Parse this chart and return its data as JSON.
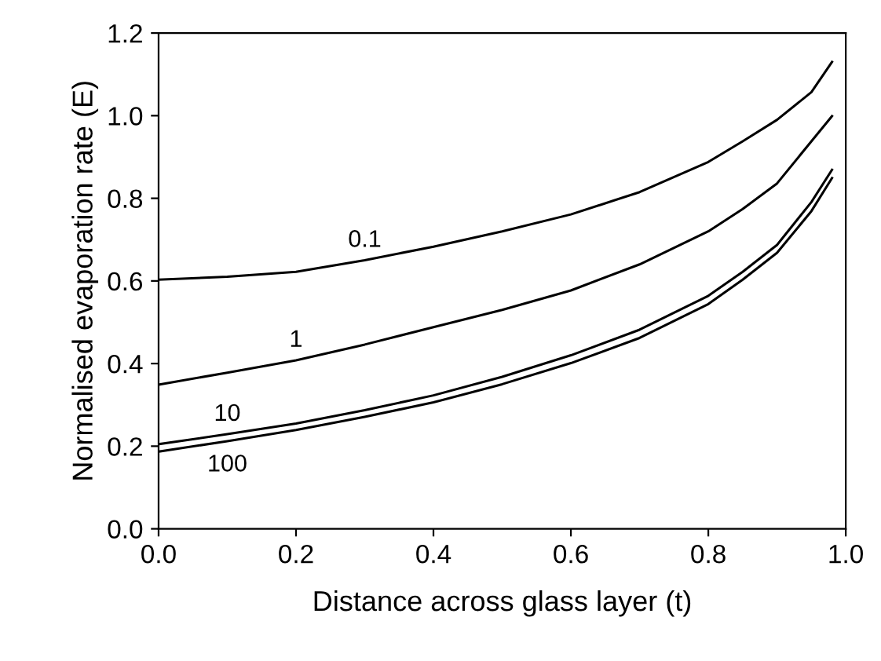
{
  "chart_data": {
    "type": "line",
    "xlabel": "Distance across glass layer (t)",
    "ylabel": "Normalised evaporation rate (E)",
    "x": [
      0,
      0.1,
      0.2,
      0.3,
      0.4,
      0.5,
      0.6,
      0.7,
      0.8,
      0.85,
      0.9,
      0.95,
      0.98
    ],
    "series": [
      {
        "name": "0.1",
        "color": "#000000",
        "values": [
          0.603,
          0.61,
          0.622,
          0.65,
          0.683,
          0.72,
          0.761,
          0.815,
          0.888,
          0.938,
          0.99,
          1.057,
          1.13
        ]
      },
      {
        "name": "1",
        "color": "#000000",
        "values": [
          0.349,
          0.378,
          0.408,
          0.446,
          0.488,
          0.53,
          0.577,
          0.64,
          0.72,
          0.774,
          0.836,
          0.938,
          0.999
        ]
      },
      {
        "name": "10",
        "color": "#000000",
        "values": [
          0.205,
          0.229,
          0.255,
          0.287,
          0.323,
          0.368,
          0.42,
          0.482,
          0.564,
          0.622,
          0.687,
          0.791,
          0.869
        ]
      },
      {
        "name": "100",
        "color": "#000000",
        "values": [
          0.187,
          0.212,
          0.239,
          0.271,
          0.306,
          0.35,
          0.401,
          0.462,
          0.544,
          0.603,
          0.668,
          0.769,
          0.849
        ]
      }
    ],
    "xlim": [
      0,
      1
    ],
    "ylim": [
      0,
      1.2
    ],
    "xticks": [
      {
        "value": 0,
        "label": "0.0"
      },
      0.2,
      0.4,
      0.6,
      0.8,
      {
        "value": 1,
        "label": "1.0"
      }
    ],
    "yticks": [
      {
        "value": 0,
        "label": "0.0"
      },
      0.2,
      0.4,
      0.6,
      0.8,
      {
        "value": 1,
        "label": "1.0"
      },
      1.2
    ],
    "grid": false,
    "marker": "none",
    "line_style": "solid"
  }
}
